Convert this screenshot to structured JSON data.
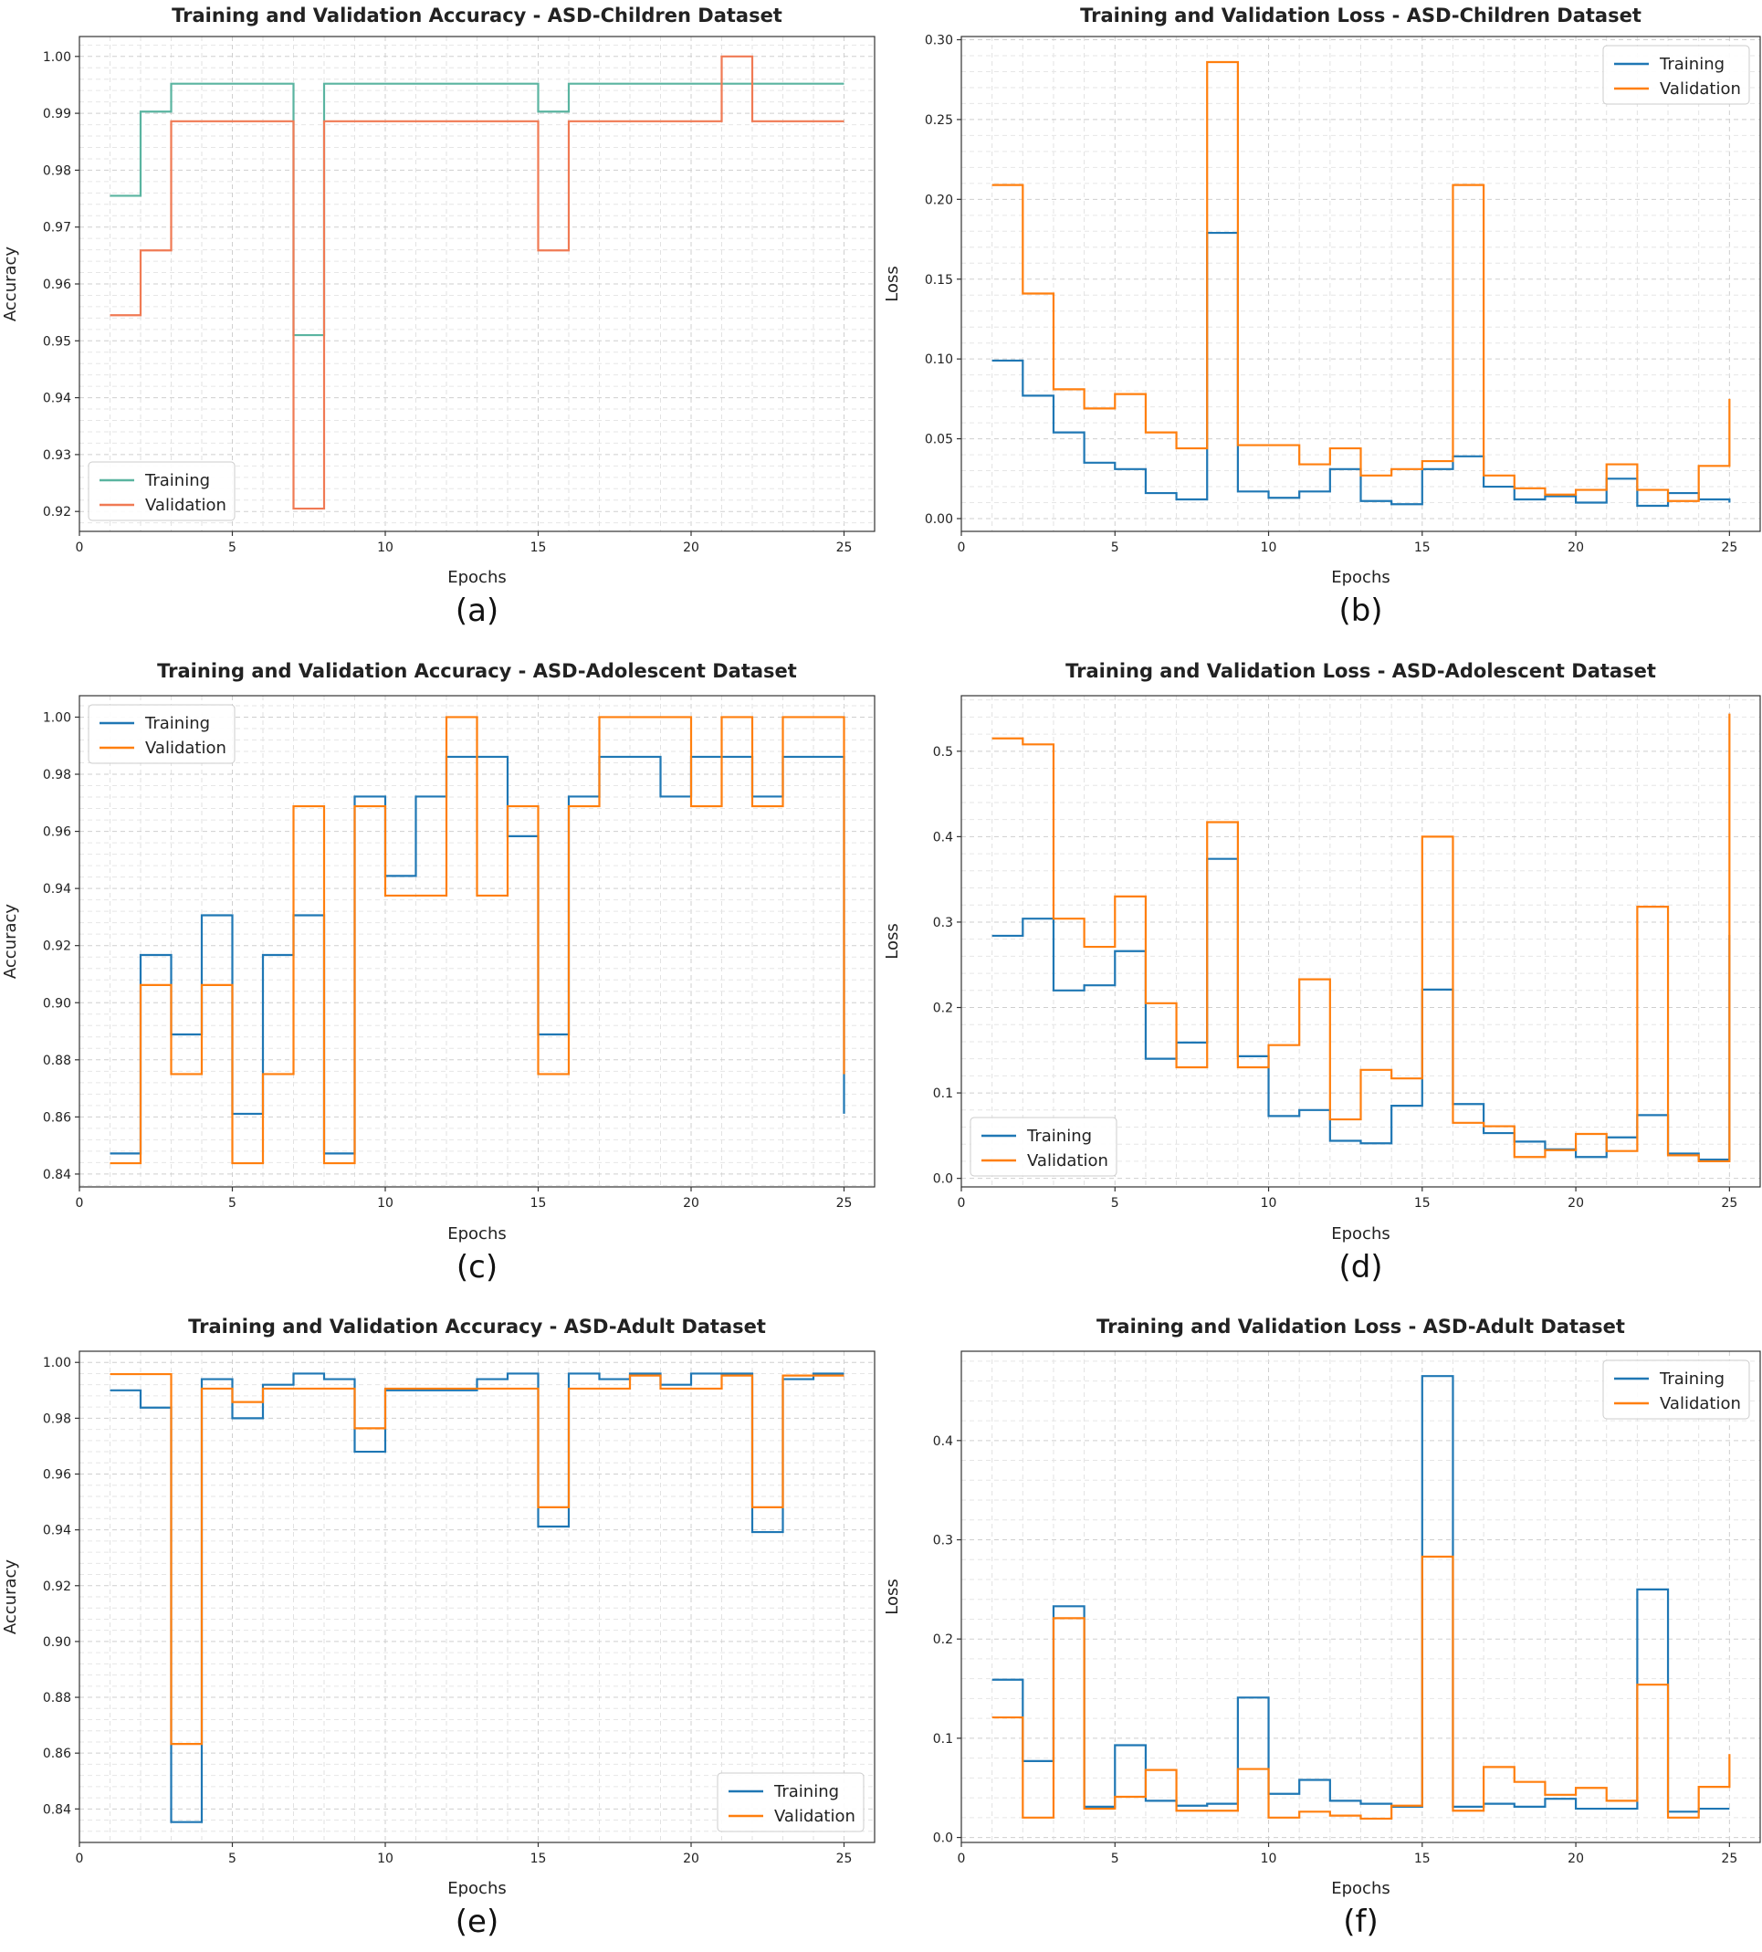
{
  "chart_data": [
    {
      "id": "a",
      "type": "line",
      "title": "Training and Validation Accuracy - ASD-Children Dataset",
      "xlabel": "Epochs",
      "ylabel": "Accuracy",
      "caption": "(a)",
      "xlim": [
        0,
        26
      ],
      "ylim": [
        0.9165,
        1.0035
      ],
      "xticks": [
        0,
        5,
        10,
        15,
        20,
        25
      ],
      "yticks": [
        0.92,
        0.93,
        0.94,
        0.95,
        0.96,
        0.97,
        0.98,
        0.99,
        1.0
      ],
      "ytick_decimals": 2,
      "legend_position": "lower-left",
      "legend_labels": [
        "Training",
        "Validation"
      ],
      "x": [
        1,
        2,
        3,
        4,
        5,
        6,
        7,
        8,
        9,
        10,
        11,
        12,
        13,
        14,
        15,
        16,
        17,
        18,
        19,
        20,
        21,
        22,
        23,
        24,
        25
      ],
      "series": [
        {
          "name": "Training",
          "color": "#5ab4a0",
          "values": [
            0.9755,
            0.9903,
            0.9952,
            0.9952,
            0.9952,
            0.9952,
            0.951,
            0.9952,
            0.9952,
            0.9952,
            0.9952,
            0.9952,
            0.9952,
            0.9952,
            0.9903,
            0.9952,
            0.9952,
            0.9952,
            0.9952,
            0.9952,
            0.9952,
            0.9952,
            0.9952,
            0.9952,
            0.9952
          ]
        },
        {
          "name": "Validation",
          "color": "#f07a54",
          "values": [
            0.9545,
            0.9659,
            0.9886,
            0.9886,
            0.9886,
            0.9886,
            0.9205,
            0.9886,
            0.9886,
            0.9886,
            0.9886,
            0.9886,
            0.9886,
            0.9886,
            0.9659,
            0.9886,
            0.9886,
            0.9886,
            0.9886,
            0.9886,
            1.0,
            0.9886,
            0.9886,
            0.9886,
            0.9886
          ]
        }
      ]
    },
    {
      "id": "b",
      "type": "line",
      "title": "Training and Validation Loss - ASD-Children Dataset",
      "xlabel": "Epochs",
      "ylabel": "Loss",
      "caption": "(b)",
      "xlim": [
        0,
        26
      ],
      "ylim": [
        -0.008,
        0.302
      ],
      "xticks": [
        0,
        5,
        10,
        15,
        20,
        25
      ],
      "yticks": [
        0.0,
        0.05,
        0.1,
        0.15,
        0.2,
        0.25,
        0.3
      ],
      "ytick_decimals": 2,
      "legend_position": "upper-right",
      "legend_labels": [
        "Training",
        "Validation"
      ],
      "x": [
        1,
        2,
        3,
        4,
        5,
        6,
        7,
        8,
        9,
        10,
        11,
        12,
        13,
        14,
        15,
        16,
        17,
        18,
        19,
        20,
        21,
        22,
        23,
        24,
        25
      ],
      "series": [
        {
          "name": "Training",
          "color": "#1f77b4",
          "values": [
            0.099,
            0.077,
            0.054,
            0.035,
            0.031,
            0.016,
            0.012,
            0.179,
            0.017,
            0.013,
            0.017,
            0.031,
            0.011,
            0.009,
            0.031,
            0.039,
            0.02,
            0.012,
            0.014,
            0.01,
            0.025,
            0.008,
            0.016,
            0.012,
            0.01
          ]
        },
        {
          "name": "Validation",
          "color": "#ff7f0e",
          "values": [
            0.209,
            0.141,
            0.081,
            0.069,
            0.078,
            0.054,
            0.044,
            0.286,
            0.046,
            0.046,
            0.034,
            0.044,
            0.027,
            0.031,
            0.036,
            0.209,
            0.027,
            0.019,
            0.015,
            0.018,
            0.034,
            0.018,
            0.011,
            0.033,
            0.075
          ]
        }
      ]
    },
    {
      "id": "c",
      "type": "line",
      "title": "Training and Validation Accuracy - ASD-Adolescent Dataset",
      "xlabel": "Epochs",
      "ylabel": "Accuracy",
      "caption": "(c)",
      "xlim": [
        0,
        26
      ],
      "ylim": [
        0.8355,
        1.0075
      ],
      "xticks": [
        0,
        5,
        10,
        15,
        20,
        25
      ],
      "yticks": [
        0.84,
        0.86,
        0.88,
        0.9,
        0.92,
        0.94,
        0.96,
        0.98,
        1.0
      ],
      "ytick_decimals": 2,
      "legend_position": "upper-left",
      "legend_labels": [
        "Training",
        "Validation"
      ],
      "x": [
        1,
        2,
        3,
        4,
        5,
        6,
        7,
        8,
        9,
        10,
        11,
        12,
        13,
        14,
        15,
        16,
        17,
        18,
        19,
        20,
        21,
        22,
        23,
        24,
        25
      ],
      "series": [
        {
          "name": "Training",
          "color": "#1f77b4",
          "values": [
            0.8472,
            0.9167,
            0.8889,
            0.9306,
            0.8611,
            0.9167,
            0.9306,
            0.8472,
            0.9722,
            0.9444,
            0.9722,
            0.9861,
            0.9861,
            0.9583,
            0.8889,
            0.9722,
            0.9861,
            0.9861,
            0.9722,
            0.9861,
            0.9861,
            0.9722,
            0.9861,
            0.9861,
            0.8611
          ]
        },
        {
          "name": "Validation",
          "color": "#ff7f0e",
          "values": [
            0.8438,
            0.9062,
            0.875,
            0.9062,
            0.8438,
            0.875,
            0.9688,
            0.8438,
            0.9688,
            0.9375,
            0.9375,
            1.0,
            0.9375,
            0.9688,
            0.875,
            0.9688,
            1.0,
            1.0,
            1.0,
            0.9688,
            1.0,
            0.9688,
            1.0,
            1.0,
            0.875
          ]
        }
      ]
    },
    {
      "id": "d",
      "type": "line",
      "title": "Training and Validation Loss - ASD-Adolescent Dataset",
      "xlabel": "Epochs",
      "ylabel": "Loss",
      "caption": "(d)",
      "xlim": [
        0,
        26
      ],
      "ylim": [
        -0.01,
        0.565
      ],
      "xticks": [
        0,
        5,
        10,
        15,
        20,
        25
      ],
      "yticks": [
        0.0,
        0.1,
        0.2,
        0.3,
        0.4,
        0.5
      ],
      "ytick_decimals": 1,
      "legend_position": "lower-left",
      "legend_labels": [
        "Training",
        "Validation"
      ],
      "x": [
        1,
        2,
        3,
        4,
        5,
        6,
        7,
        8,
        9,
        10,
        11,
        12,
        13,
        14,
        15,
        16,
        17,
        18,
        19,
        20,
        21,
        22,
        23,
        24,
        25
      ],
      "series": [
        {
          "name": "Training",
          "color": "#1f77b4",
          "values": [
            0.284,
            0.304,
            0.22,
            0.226,
            0.266,
            0.14,
            0.159,
            0.374,
            0.143,
            0.073,
            0.08,
            0.044,
            0.041,
            0.085,
            0.221,
            0.087,
            0.053,
            0.043,
            0.034,
            0.025,
            0.048,
            0.074,
            0.029,
            0.022,
            0.285
          ]
        },
        {
          "name": "Validation",
          "color": "#ff7f0e",
          "values": [
            0.515,
            0.508,
            0.304,
            0.271,
            0.33,
            0.205,
            0.13,
            0.417,
            0.13,
            0.156,
            0.233,
            0.069,
            0.127,
            0.117,
            0.4,
            0.065,
            0.061,
            0.025,
            0.033,
            0.052,
            0.032,
            0.318,
            0.027,
            0.02,
            0.544
          ]
        }
      ]
    },
    {
      "id": "e",
      "type": "line",
      "title": "Training and Validation Accuracy - ASD-Adult Dataset",
      "xlabel": "Epochs",
      "ylabel": "Accuracy",
      "caption": "(e)",
      "xlim": [
        0,
        26
      ],
      "ylim": [
        0.828,
        1.004
      ],
      "xticks": [
        0,
        5,
        10,
        15,
        20,
        25
      ],
      "yticks": [
        0.84,
        0.86,
        0.88,
        0.9,
        0.92,
        0.94,
        0.96,
        0.98,
        1.0
      ],
      "ytick_decimals": 2,
      "legend_position": "lower-right",
      "legend_labels": [
        "Training",
        "Validation"
      ],
      "x": [
        1,
        2,
        3,
        4,
        5,
        6,
        7,
        8,
        9,
        10,
        11,
        12,
        13,
        14,
        15,
        16,
        17,
        18,
        19,
        20,
        21,
        22,
        23,
        24,
        25
      ],
      "series": [
        {
          "name": "Training",
          "color": "#1f77b4",
          "values": [
            0.99,
            0.9838,
            0.8353,
            0.994,
            0.98,
            0.992,
            0.996,
            0.994,
            0.968,
            0.99,
            0.99,
            0.99,
            0.994,
            0.996,
            0.9412,
            0.996,
            0.994,
            0.996,
            0.992,
            0.996,
            0.996,
            0.9392,
            0.994,
            0.996,
            0.996
          ]
        },
        {
          "name": "Validation",
          "color": "#ff7f0e",
          "values": [
            0.9958,
            0.9958,
            0.8633,
            0.9906,
            0.9858,
            0.9906,
            0.9906,
            0.9906,
            0.9764,
            0.9906,
            0.9906,
            0.9906,
            0.9906,
            0.9906,
            0.9481,
            0.9906,
            0.9906,
            0.9953,
            0.9906,
            0.9906,
            0.9953,
            0.9481,
            0.9953,
            0.9953,
            0.9953
          ]
        }
      ]
    },
    {
      "id": "f",
      "type": "line",
      "title": "Training and Validation Loss - ASD-Adult Dataset",
      "xlabel": "Epochs",
      "ylabel": "Loss",
      "caption": "(f)",
      "xlim": [
        0,
        26
      ],
      "ylim": [
        -0.005,
        0.49
      ],
      "xticks": [
        0,
        5,
        10,
        15,
        20,
        25
      ],
      "yticks": [
        0.0,
        0.1,
        0.2,
        0.3,
        0.4
      ],
      "ytick_decimals": 1,
      "legend_position": "upper-right",
      "legend_labels": [
        "Training",
        "Validation"
      ],
      "x": [
        1,
        2,
        3,
        4,
        5,
        6,
        7,
        8,
        9,
        10,
        11,
        12,
        13,
        14,
        15,
        16,
        17,
        18,
        19,
        20,
        21,
        22,
        23,
        24,
        25
      ],
      "series": [
        {
          "name": "Training",
          "color": "#1f77b4",
          "values": [
            0.159,
            0.077,
            0.233,
            0.031,
            0.093,
            0.037,
            0.032,
            0.034,
            0.141,
            0.044,
            0.058,
            0.037,
            0.034,
            0.031,
            0.465,
            0.031,
            0.034,
            0.031,
            0.039,
            0.029,
            0.029,
            0.25,
            0.026,
            0.029,
            0.029
          ]
        },
        {
          "name": "Validation",
          "color": "#ff7f0e",
          "values": [
            0.121,
            0.02,
            0.221,
            0.029,
            0.041,
            0.068,
            0.027,
            0.027,
            0.069,
            0.02,
            0.026,
            0.022,
            0.019,
            0.032,
            0.283,
            0.027,
            0.071,
            0.056,
            0.043,
            0.05,
            0.037,
            0.154,
            0.02,
            0.051,
            0.084
          ]
        }
      ]
    }
  ]
}
